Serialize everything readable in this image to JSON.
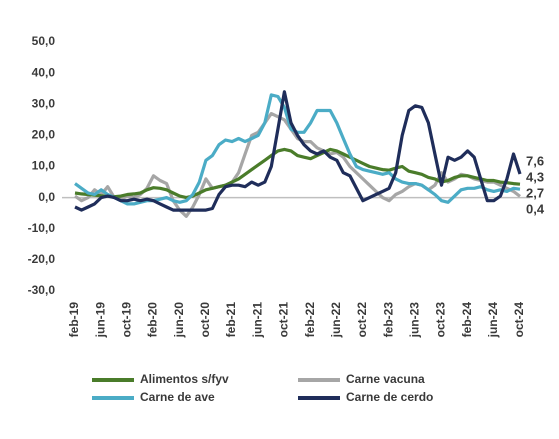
{
  "chart_data": {
    "type": "line",
    "categories": [
      "feb-19",
      null,
      null,
      null,
      "jun-19",
      null,
      null,
      null,
      "oct-19",
      null,
      null,
      null,
      "feb-20",
      null,
      null,
      null,
      "jun-20",
      null,
      null,
      null,
      "oct-20",
      null,
      null,
      null,
      "feb-21",
      null,
      null,
      null,
      "jun-21",
      null,
      null,
      null,
      "oct-21",
      null,
      null,
      null,
      "feb-22",
      null,
      null,
      null,
      "jun-22",
      null,
      null,
      null,
      "oct-22",
      null,
      null,
      null,
      "feb-23",
      null,
      null,
      null,
      "jun-23",
      null,
      null,
      null,
      "oct-23",
      null,
      null,
      null,
      "feb-24",
      null,
      null,
      null,
      "jun-24",
      null,
      null,
      null,
      "oct-24"
    ],
    "ylim": [
      -30,
      50
    ],
    "yticks": [
      {
        "value": -30,
        "label": "-30,0"
      },
      {
        "value": -20,
        "label": "-20,0"
      },
      {
        "value": -10,
        "label": "-10,0"
      },
      {
        "value": 0,
        "label": "0,0"
      },
      {
        "value": 10,
        "label": "10,0"
      },
      {
        "value": 20,
        "label": "20,0"
      },
      {
        "value": 30,
        "label": "30,0"
      },
      {
        "value": 40,
        "label": "40,0"
      },
      {
        "value": 50,
        "label": "50,0"
      }
    ],
    "series": [
      {
        "name": "Alimentos s/fyv",
        "color": "#4a7c2a",
        "values": [
          1.5,
          1.2,
          1.0,
          0.8,
          0.6,
          0.5,
          0.3,
          0.5,
          1.0,
          1.2,
          1.5,
          2.5,
          3.2,
          3.0,
          2.5,
          1.5,
          0.5,
          0.0,
          0.5,
          1.5,
          2.5,
          3.0,
          3.5,
          4.0,
          5.0,
          6.0,
          7.5,
          9.0,
          10.5,
          12.0,
          13.5,
          15.0,
          15.5,
          15.0,
          13.5,
          13.0,
          12.5,
          13.5,
          14.5,
          15.5,
          15.0,
          14.0,
          13.0,
          12.0,
          11.0,
          10.0,
          9.5,
          9.0,
          8.8,
          9.5,
          10.0,
          8.5,
          8.0,
          7.5,
          6.5,
          6.0,
          5.0,
          5.5,
          6.5,
          7.0,
          7.0,
          6.5,
          6.0,
          5.5,
          5.5,
          5.0,
          4.8,
          4.5,
          4.3
        ],
        "value_labels": [
          null,
          null,
          null,
          null,
          null,
          null,
          null,
          null,
          null,
          null,
          null,
          null,
          null,
          null,
          null,
          null,
          null,
          null,
          null,
          null,
          null,
          null,
          null,
          null,
          null,
          null,
          null,
          null,
          null,
          null,
          null,
          null,
          null,
          null,
          null,
          null,
          null,
          null,
          null,
          null,
          null,
          null,
          null,
          null,
          null,
          null,
          null,
          null,
          null,
          null,
          null,
          null,
          null,
          null,
          null,
          null,
          null,
          null,
          null,
          null,
          null,
          null,
          null,
          null,
          null,
          null,
          null,
          null,
          "4,3"
        ]
      },
      {
        "name": "Carne vacuna",
        "color": "#a6a6a6",
        "values": [
          0.5,
          -1.0,
          0.0,
          2.5,
          1.0,
          3.5,
          0.0,
          -0.5,
          0.5,
          0.0,
          1.0,
          3.0,
          7.0,
          5.5,
          4.5,
          -1.0,
          -4.0,
          -6.0,
          -3.0,
          1.0,
          6.0,
          3.0,
          3.5,
          4.0,
          5.0,
          8.0,
          14.0,
          20.0,
          21.0,
          24.0,
          27.0,
          26.0,
          25.0,
          22.0,
          19.0,
          18.0,
          18.0,
          16.0,
          15.0,
          14.0,
          14.5,
          13.0,
          10.0,
          8.0,
          6.0,
          4.0,
          2.0,
          0.0,
          -1.0,
          1.0,
          2.0,
          3.5,
          4.5,
          4.0,
          2.5,
          4.0,
          8.0,
          5.0,
          6.0,
          7.5,
          7.0,
          6.0,
          5.5,
          5.0,
          5.0,
          4.0,
          3.0,
          2.0,
          0.4
        ],
        "value_labels": [
          null,
          null,
          null,
          null,
          null,
          null,
          null,
          null,
          null,
          null,
          null,
          null,
          null,
          null,
          null,
          null,
          null,
          null,
          null,
          null,
          null,
          null,
          null,
          null,
          null,
          null,
          null,
          null,
          null,
          null,
          null,
          null,
          null,
          null,
          null,
          null,
          null,
          null,
          null,
          null,
          null,
          null,
          null,
          null,
          null,
          null,
          null,
          null,
          null,
          null,
          null,
          null,
          null,
          null,
          null,
          null,
          null,
          null,
          null,
          null,
          null,
          null,
          null,
          null,
          null,
          null,
          null,
          null,
          "0,4"
        ]
      },
      {
        "name": "Carne de ave",
        "color": "#4bacc6",
        "values": [
          4.5,
          3.0,
          1.5,
          1.0,
          2.5,
          1.0,
          0.0,
          -1.0,
          -2.0,
          -2.0,
          -1.5,
          -1.0,
          -1.0,
          -0.5,
          0.0,
          -1.0,
          -1.5,
          -1.0,
          1.0,
          5.0,
          12.0,
          13.5,
          17.0,
          18.5,
          18.0,
          19.0,
          18.0,
          19.0,
          20.0,
          24.0,
          33.0,
          32.5,
          29.0,
          22.0,
          21.0,
          21.0,
          24.0,
          28.0,
          28.0,
          28.0,
          24.0,
          19.0,
          14.0,
          10.0,
          9.0,
          8.5,
          8.0,
          7.5,
          8.0,
          6.0,
          5.0,
          4.5,
          4.5,
          4.0,
          2.5,
          1.0,
          -1.0,
          -1.5,
          0.5,
          2.5,
          3.0,
          3.0,
          3.5,
          2.5,
          2.0,
          2.5,
          2.0,
          3.0,
          2.7
        ],
        "value_labels": [
          null,
          null,
          null,
          null,
          null,
          null,
          null,
          null,
          null,
          null,
          null,
          null,
          null,
          null,
          null,
          null,
          null,
          null,
          null,
          null,
          null,
          null,
          null,
          null,
          null,
          null,
          null,
          null,
          null,
          null,
          null,
          null,
          null,
          null,
          null,
          null,
          null,
          null,
          null,
          null,
          null,
          null,
          null,
          null,
          null,
          null,
          null,
          null,
          null,
          null,
          null,
          null,
          null,
          null,
          null,
          null,
          null,
          null,
          null,
          null,
          null,
          null,
          null,
          null,
          null,
          null,
          null,
          null,
          "2,7"
        ]
      },
      {
        "name": "Carne de cerdo",
        "color": "#1f2d5a",
        "values": [
          -3.0,
          -4.0,
          -3.0,
          -2.0,
          0.0,
          0.5,
          0.0,
          -1.0,
          -1.0,
          -0.5,
          -1.0,
          -0.5,
          -1.0,
          -2.0,
          -3.0,
          -4.0,
          -4.0,
          -4.0,
          -4.0,
          -4.0,
          -4.0,
          -3.5,
          1.0,
          3.5,
          4.0,
          4.0,
          3.5,
          5.0,
          4.0,
          5.0,
          10.0,
          22.0,
          34.0,
          24.0,
          20.0,
          17.0,
          15.0,
          14.0,
          15.0,
          13.0,
          12.0,
          8.0,
          7.0,
          3.0,
          -1.0,
          0.0,
          1.0,
          2.0,
          3.0,
          8.0,
          20.0,
          28.0,
          29.5,
          29.0,
          24.0,
          14.0,
          4.0,
          13.0,
          12.0,
          13.0,
          15.0,
          13.0,
          6.0,
          -1.0,
          -1.0,
          0.5,
          6.0,
          14.0,
          7.6
        ],
        "value_labels": [
          null,
          null,
          null,
          null,
          null,
          null,
          null,
          null,
          null,
          null,
          null,
          null,
          null,
          null,
          null,
          null,
          null,
          null,
          null,
          null,
          null,
          null,
          null,
          null,
          null,
          null,
          null,
          null,
          null,
          null,
          null,
          null,
          null,
          null,
          null,
          null,
          null,
          null,
          null,
          null,
          null,
          null,
          null,
          null,
          null,
          null,
          null,
          null,
          null,
          null,
          null,
          null,
          null,
          null,
          null,
          null,
          null,
          null,
          null,
          null,
          null,
          null,
          null,
          null,
          null,
          null,
          null,
          null,
          "7,6"
        ]
      }
    ]
  }
}
